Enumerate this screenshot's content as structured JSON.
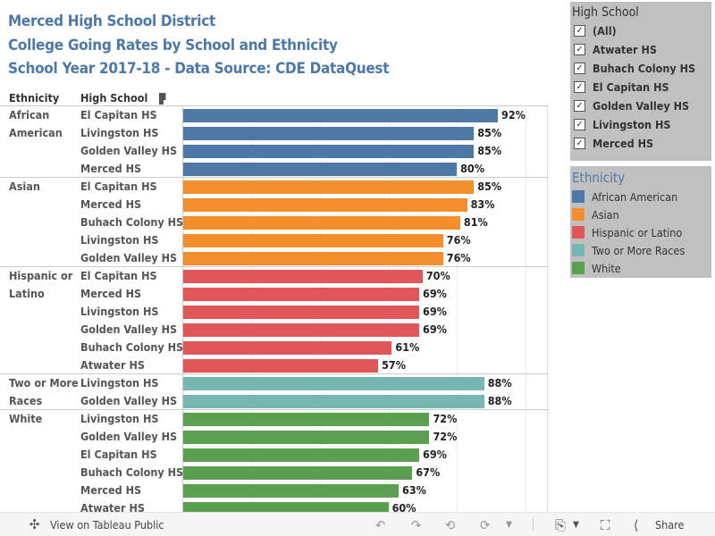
{
  "titles": [
    "Merced High School District",
    "College Going Rates by School and Ethnicity",
    "School Year 2017-18 - Data Source: CDE DataQuest"
  ],
  "headers": {
    "ethnicity": "Ethnicity",
    "school": "High School"
  },
  "colors": {
    "African American": "#4e79a7",
    "Asian": "#f28e2b",
    "Hispanic or Latino": "#e15759",
    "Two or More Races": "#76b7b2",
    "White": "#59a14f"
  },
  "chart_data": {
    "type": "bar",
    "orientation": "horizontal",
    "xlim": [
      0,
      100
    ],
    "groups": [
      {
        "ethnicity": "African American",
        "rows": [
          [
            "El Capitan HS",
            92,
            "92%"
          ],
          [
            "Livingston HS",
            85,
            "85%"
          ],
          [
            "Golden Valley HS",
            85,
            "85%"
          ],
          [
            "Merced HS",
            80,
            "80%"
          ]
        ]
      },
      {
        "ethnicity": "Asian",
        "rows": [
          [
            "El Capitan HS",
            85,
            "85%"
          ],
          [
            "Merced HS",
            83,
            "83%"
          ],
          [
            "Buhach Colony HS",
            81,
            "81%"
          ],
          [
            "Livingston HS",
            76,
            "76%"
          ],
          [
            "Golden Valley HS",
            76,
            "76%"
          ]
        ]
      },
      {
        "ethnicity": "Hispanic or Latino",
        "rows": [
          [
            "El Capitan HS",
            70,
            "70%"
          ],
          [
            "Merced HS",
            69,
            "69%"
          ],
          [
            "Livingston HS",
            69,
            "69%"
          ],
          [
            "Golden Valley HS",
            69,
            "69%"
          ],
          [
            "Buhach Colony HS",
            61,
            "61%"
          ],
          [
            "Atwater HS",
            57,
            "57%"
          ]
        ]
      },
      {
        "ethnicity": "Two or More Races",
        "rows": [
          [
            "Livingston HS",
            88,
            "88%"
          ],
          [
            "Golden Valley HS",
            88,
            "88%"
          ]
        ]
      },
      {
        "ethnicity": "White",
        "rows": [
          [
            "Livingston HS",
            72,
            "72%"
          ],
          [
            "Golden Valley HS",
            72,
            "72%"
          ],
          [
            "El Capitan HS",
            69,
            "69%"
          ],
          [
            "Buhach Colony HS",
            67,
            "67%"
          ],
          [
            "Merced HS",
            63,
            "63%"
          ],
          [
            "Atwater HS",
            60,
            "60%"
          ]
        ]
      }
    ]
  },
  "filter": {
    "title": "High School",
    "items": [
      "(All)",
      "Atwater HS",
      "Buhach Colony HS",
      "El Capitan HS",
      "Golden Valley HS",
      "Livingston HS",
      "Merced HS"
    ]
  },
  "legend": {
    "title": "Ethnicity",
    "items": [
      "African American",
      "Asian",
      "Hispanic or Latino",
      "Two or More Races",
      "White"
    ]
  },
  "footer": {
    "view": "View on Tableau Public",
    "share": "Share"
  }
}
